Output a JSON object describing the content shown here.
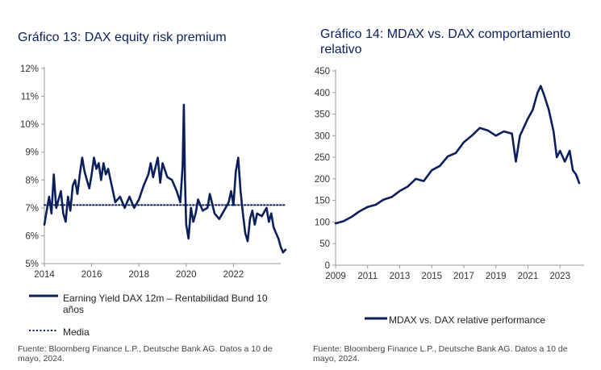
{
  "chart_data": [
    {
      "type": "line",
      "title": "Gráfico 13: DAX equity risk premium",
      "y_ticks": [
        "12%",
        "11%",
        "10%",
        "9%",
        "8%",
        "7%",
        "6%",
        "5%"
      ],
      "x_ticks": [
        "2014",
        "2016",
        "2018",
        "2020",
        "2022"
      ],
      "ylim": [
        5,
        12
      ],
      "xlim": [
        2014,
        2024
      ],
      "grid": false,
      "legend_position": "bottom",
      "series": [
        {
          "name": "Earning Yield DAX 12m – Rentabilidad Bund 10 años",
          "style": "solid",
          "x": [
            2014.0,
            2014.1,
            2014.2,
            2014.3,
            2014.4,
            2014.5,
            2014.6,
            2014.7,
            2014.8,
            2014.9,
            2015.0,
            2015.1,
            2015.2,
            2015.3,
            2015.4,
            2015.5,
            2015.6,
            2015.7,
            2015.8,
            2015.9,
            2016.0,
            2016.1,
            2016.2,
            2016.3,
            2016.4,
            2016.5,
            2016.6,
            2016.7,
            2016.8,
            2016.9,
            2017.0,
            2017.2,
            2017.4,
            2017.6,
            2017.8,
            2018.0,
            2018.2,
            2018.4,
            2018.5,
            2018.6,
            2018.8,
            2018.9,
            2019.0,
            2019.2,
            2019.4,
            2019.6,
            2019.75,
            2019.85,
            2019.9,
            2019.95,
            2020.0,
            2020.1,
            2020.2,
            2020.3,
            2020.4,
            2020.5,
            2020.7,
            2020.9,
            2021.0,
            2021.2,
            2021.4,
            2021.6,
            2021.8,
            2021.9,
            2022.0,
            2022.1,
            2022.2,
            2022.3,
            2022.4,
            2022.5,
            2022.6,
            2022.7,
            2022.8,
            2022.9,
            2023.0,
            2023.2,
            2023.4,
            2023.5,
            2023.6,
            2023.7,
            2023.8,
            2023.9,
            2024.0,
            2024.1,
            2024.2
          ],
          "values": [
            6.4,
            6.9,
            7.4,
            6.8,
            8.2,
            7.0,
            7.3,
            7.6,
            6.8,
            6.5,
            7.4,
            6.9,
            7.8,
            8.0,
            7.5,
            8.2,
            8.8,
            8.3,
            8.0,
            7.7,
            8.2,
            8.8,
            8.4,
            8.6,
            8.0,
            8.6,
            8.2,
            8.4,
            8.0,
            7.6,
            7.2,
            7.4,
            7.0,
            7.4,
            7.0,
            7.3,
            7.8,
            8.2,
            8.6,
            8.1,
            8.8,
            7.9,
            8.6,
            8.1,
            8.0,
            7.6,
            7.2,
            8.5,
            10.7,
            8.0,
            6.4,
            5.9,
            7.0,
            6.5,
            6.8,
            7.3,
            6.9,
            7.0,
            7.5,
            6.8,
            6.6,
            6.9,
            7.2,
            7.6,
            7.1,
            8.3,
            8.8,
            7.6,
            6.8,
            6.1,
            5.8,
            6.6,
            6.9,
            6.4,
            6.8,
            6.7,
            7.0,
            6.5,
            6.8,
            6.3,
            6.1,
            5.9,
            5.6,
            5.4,
            5.5
          ]
        },
        {
          "name": "Media",
          "style": "dotted",
          "x": [
            2014.0,
            2024.2
          ],
          "values": [
            7.1,
            7.1
          ]
        }
      ]
    },
    {
      "type": "line",
      "title": "Gráfico 14: MDAX vs. DAX comportamiento relativo",
      "y_ticks": [
        "450",
        "400",
        "350",
        "300",
        "250",
        "200",
        "150",
        "100",
        "50",
        "0"
      ],
      "x_ticks": [
        "2009",
        "2011",
        "2013",
        "2015",
        "2017",
        "2019",
        "2021",
        "2023"
      ],
      "ylim": [
        0,
        450
      ],
      "xlim": [
        2009,
        2024.5
      ],
      "grid": false,
      "legend_position": "bottom",
      "series": [
        {
          "name": "MDAX vs. DAX relative performance",
          "style": "solid",
          "x": [
            2009.0,
            2009.5,
            2010.0,
            2010.5,
            2011.0,
            2011.5,
            2012.0,
            2012.5,
            2013.0,
            2013.5,
            2014.0,
            2014.5,
            2015.0,
            2015.5,
            2016.0,
            2016.5,
            2017.0,
            2017.5,
            2018.0,
            2018.5,
            2019.0,
            2019.5,
            2020.0,
            2020.25,
            2020.5,
            2021.0,
            2021.3,
            2021.6,
            2021.8,
            2022.0,
            2022.3,
            2022.6,
            2022.8,
            2023.0,
            2023.3,
            2023.6,
            2023.8,
            2024.0,
            2024.2
          ],
          "values": [
            97,
            102,
            112,
            125,
            135,
            140,
            152,
            158,
            172,
            182,
            200,
            195,
            220,
            230,
            252,
            260,
            285,
            300,
            318,
            312,
            300,
            310,
            305,
            240,
            300,
            340,
            360,
            400,
            415,
            395,
            360,
            310,
            250,
            265,
            240,
            265,
            220,
            210,
            190
          ]
        }
      ]
    }
  ],
  "sources": {
    "left": "Fuente: Bloomberg Finance L.P., Deutsche Bank AG. Datos a 10 de mayo, 2024.",
    "right": "Fuente: Bloomberg Finance L.P., Deutsche Bank AG. Datos a 10 de mayo, 2024."
  },
  "colors": {
    "line": "#0b1f5c",
    "title": "#0b1f5c"
  }
}
